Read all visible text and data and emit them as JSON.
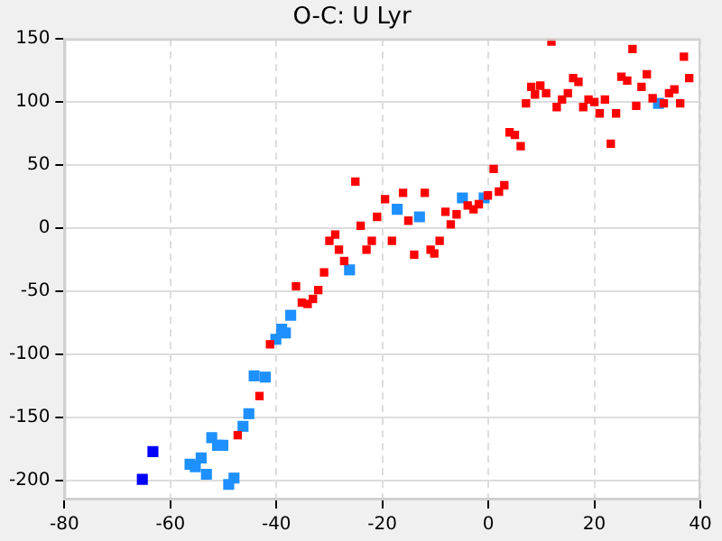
{
  "chart_data": {
    "type": "scatter",
    "title": "O-C: U Lyr",
    "marker": "square",
    "grid": true,
    "legend": false,
    "xlim": [
      -80,
      40
    ],
    "xticks": [
      -80,
      -60,
      -40,
      -20,
      0,
      20,
      40
    ],
    "ylim": [
      -215,
      150
    ],
    "yticks": [
      -200,
      -150,
      -100,
      -50,
      0,
      50,
      100,
      150
    ],
    "series": [
      {
        "color": "#ff0000",
        "x": [
          -47.3,
          -43.2,
          -41.2,
          -36.3,
          -35.2,
          -34.1,
          -33.1,
          -32.1,
          -31.0,
          -25.1,
          -19.5,
          -21.0,
          -24.1,
          -28.9,
          -30.0,
          -28.2,
          -27.2,
          -22.0,
          -23.0,
          -16.1,
          -15.1,
          -12.0,
          -18.2,
          -14.0,
          -10.9,
          -10.2,
          -9.2,
          -8.1,
          -7.1,
          -6.0,
          -3.9,
          -2.8,
          -1.8,
          -0.1,
          1.0,
          2.0,
          3.0,
          4.0,
          5.0,
          6.1,
          7.1,
          8.1,
          8.8,
          9.8,
          10.9,
          11.9,
          12.9,
          13.9,
          15.0,
          16.0,
          17.0,
          17.9,
          18.9,
          20.0,
          21.0,
          22.0,
          23.1,
          24.1,
          25.1,
          26.2,
          27.2,
          27.9,
          28.9,
          29.9,
          31.0,
          33.1,
          34.1,
          35.1,
          36.2,
          36.9,
          37.9
        ],
        "values": [
          -164,
          -133,
          -92,
          -46,
          -59,
          -60,
          -56,
          -49,
          -35,
          37,
          23,
          9,
          2,
          -5,
          -10,
          -17,
          -26,
          -10,
          -17,
          28,
          6,
          28,
          -10,
          -21,
          -17,
          -20,
          -10,
          13,
          3,
          11,
          18,
          15,
          19,
          26,
          47,
          29,
          34,
          76,
          74,
          65,
          99,
          112,
          106,
          113,
          107,
          148,
          96,
          102,
          107,
          119,
          116,
          96,
          102,
          100,
          91,
          102,
          67,
          91,
          120,
          117,
          142,
          97,
          112,
          122,
          103,
          99,
          107,
          110,
          99,
          136,
          119
        ]
      },
      {
        "color": "#1e90ff",
        "x": [
          -56.3,
          -55.3,
          -54.2,
          -53.2,
          -52.2,
          -51.1,
          -50.1,
          -49.0,
          -48.0,
          -46.3,
          -45.2,
          -44.2,
          -42.1,
          -40.1,
          -39.0,
          -38.3,
          -37.3,
          -26.2,
          -17.2,
          -13.0,
          -4.9,
          -0.8,
          32.1
        ],
        "values": [
          -187,
          -189,
          -182,
          -195,
          -166,
          -172,
          -172,
          -203,
          -198,
          -157,
          -147,
          -117,
          -118,
          -88,
          -80,
          -83,
          -69,
          -33,
          15,
          9,
          24,
          24,
          99
        ]
      },
      {
        "color": "#0000ff",
        "x": [
          -65.3,
          -63.3
        ],
        "values": [
          -199,
          -177
        ]
      }
    ]
  }
}
